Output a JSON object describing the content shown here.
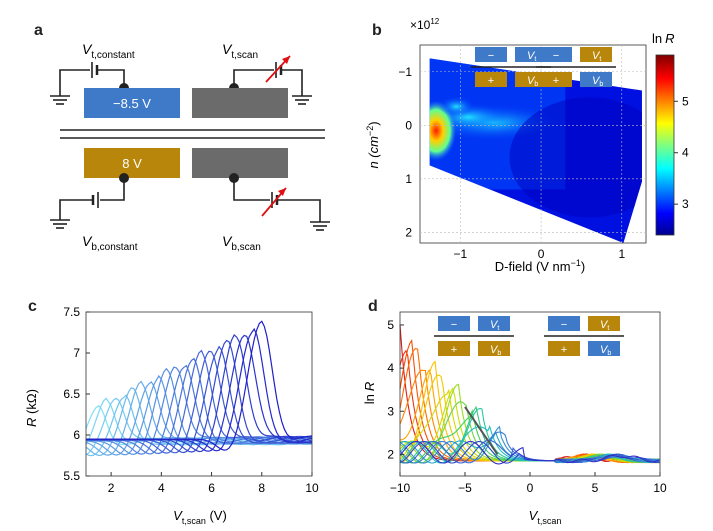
{
  "panel_labels": {
    "a": "a",
    "b": "b",
    "c": "c",
    "d": "d"
  },
  "colors": {
    "blue": "#3f7ac9",
    "gold": "#b8860b",
    "gray": "#6b6b6b",
    "red_arrow": "#e01010"
  },
  "panel_a": {
    "top_gate_value": "−8.5 V",
    "bottom_gate_value": "8 V",
    "labels": {
      "vt_constant_main": "V",
      "vt_constant_sub": "t,constant",
      "vt_scan_main": "V",
      "vt_scan_sub": "t,scan",
      "vb_constant_main": "V",
      "vb_constant_sub": "b,constant",
      "vb_scan_main": "V",
      "vb_scan_sub": "b,scan"
    }
  },
  "legend_boxes": {
    "minus": "−",
    "plus": "+",
    "vt_main": "V",
    "vt_sub": "t",
    "vb_main": "V",
    "vb_sub": "b"
  },
  "chart_data": [
    {
      "panel": "b",
      "type": "heatmap",
      "xlabel_main": "D-field (V nm",
      "xlabel_sup": "−1",
      "xlabel_close": ")",
      "ylabel_main": "n (cm",
      "ylabel_sup": "−2",
      "ylabel_close": ")",
      "y_multiplier_main": "×10",
      "y_multiplier_sup": "12",
      "xlim": [
        -1.5,
        1.3
      ],
      "ylim": [
        -1.5,
        2.2
      ],
      "y_inverted": true,
      "x_ticks": [
        "−1",
        "0",
        "1"
      ],
      "x_tick_values": [
        -1,
        0,
        1
      ],
      "y_ticks": [
        "−1",
        "0",
        "1",
        "2"
      ],
      "y_tick_values": [
        -1,
        0,
        1,
        2
      ],
      "colorbar_label_main": "ln",
      "colorbar_label_var": "R",
      "colorbar_ticks": [
        "5",
        "4",
        "3"
      ],
      "colorbar_tick_values": [
        5,
        4,
        3
      ],
      "colorbar_range": [
        2.4,
        5.9
      ],
      "colormap": "jet"
    },
    {
      "panel": "c",
      "type": "line",
      "xlabel_main": "V",
      "xlabel_sub": "t,scan",
      "xlabel_unit": " (V)",
      "ylabel_main": "R",
      "ylabel_unit": " (kΩ)",
      "xlim": [
        1,
        10
      ],
      "ylim": [
        5.5,
        7.5
      ],
      "x_ticks": [
        "2",
        "4",
        "6",
        "8",
        "10"
      ],
      "x_tick_values": [
        2,
        4,
        6,
        8,
        10
      ],
      "y_ticks": [
        "5.5",
        "6",
        "6.5",
        "7",
        "7.5"
      ],
      "y_tick_values": [
        5.5,
        6,
        6.5,
        7,
        7.5
      ],
      "series_count": 20,
      "peak_start": [
        1.5,
        6.35
      ],
      "peak_end": [
        8.0,
        7.35
      ],
      "color_start": "#7fe0f5",
      "color_end": "#2020c8"
    },
    {
      "panel": "d",
      "type": "line",
      "xlabel_main": "V",
      "xlabel_sub": "t,scan",
      "ylabel_main": "ln",
      "ylabel_var": "R",
      "xlim": [
        -10,
        10
      ],
      "ylim": [
        1.5,
        5.3
      ],
      "x_ticks": [
        "−10",
        "−5",
        "0",
        "5",
        "10"
      ],
      "x_tick_values": [
        -10,
        -5,
        0,
        5,
        10
      ],
      "y_ticks": [
        "2",
        "3",
        "4",
        "5"
      ],
      "y_tick_values": [
        2,
        3,
        4,
        5
      ],
      "series_count": 22,
      "guide_line": {
        "x": [
          -5,
          -2.5
        ],
        "y": [
          3.1,
          2.0
        ]
      },
      "color_start": "#e01818",
      "color_end": "#3030c8"
    }
  ]
}
